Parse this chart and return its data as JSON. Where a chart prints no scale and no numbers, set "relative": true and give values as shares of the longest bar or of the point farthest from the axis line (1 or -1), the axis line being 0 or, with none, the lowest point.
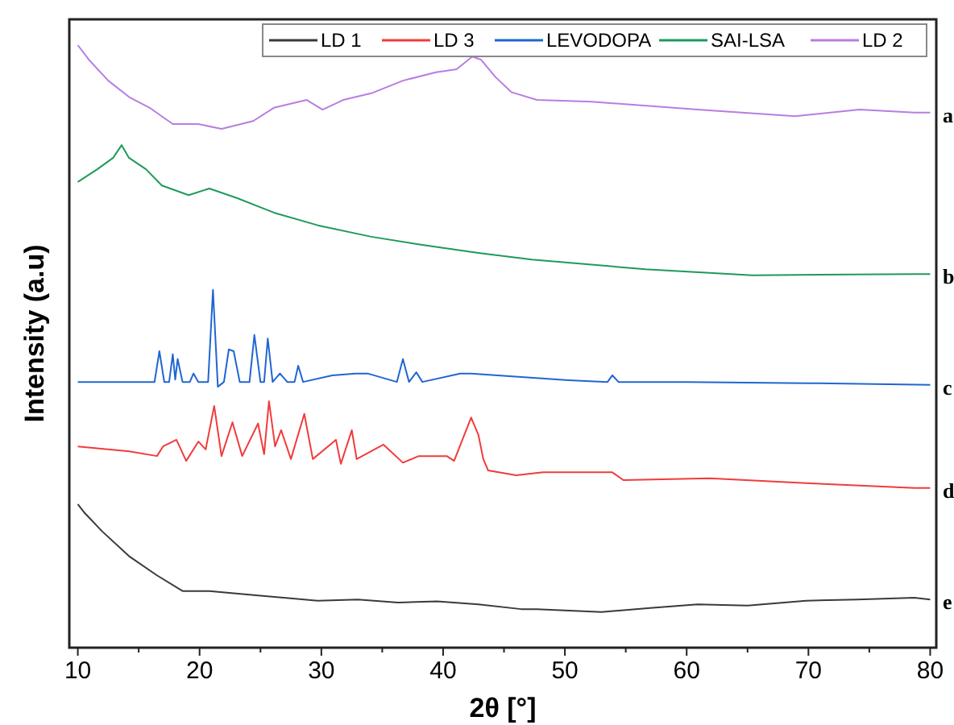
{
  "chart_data": {
    "type": "line",
    "relative": true,
    "xlabel": "2θ [°]",
    "ylabel": "Intensity (a.u)",
    "xlim": [
      9.3,
      80.5
    ],
    "xticks": [
      10,
      {
        "value": 15,
        "label": null
      },
      20,
      {
        "value": 25,
        "label": null
      },
      30,
      {
        "value": 35,
        "label": null
      },
      40,
      {
        "value": 45,
        "label": null
      },
      50,
      {
        "value": 55,
        "label": null
      },
      60,
      {
        "value": 65,
        "label": null
      },
      70,
      {
        "value": 75,
        "label": null
      },
      80
    ],
    "legend": "top right",
    "grid": false,
    "marker": "none",
    "line_style": "solid",
    "series": [
      {
        "name": "LD 1",
        "color": "#3a3a3a",
        "x": [
          10,
          10.5,
          12,
          14.2,
          16.5,
          18.6,
          20.8,
          23,
          25.2,
          27.5,
          29.7,
          33,
          36.3,
          39.5,
          42.9,
          46.4,
          47.7,
          53,
          57,
          60.9,
          65,
          69.8,
          74,
          78.7,
          80
        ],
        "values": [
          0.238,
          0.225,
          0.193,
          0.152,
          0.12,
          0.094,
          0.094,
          0.09,
          0.086,
          0.082,
          0.078,
          0.08,
          0.075,
          0.077,
          0.072,
          0.064,
          0.064,
          0.059,
          0.066,
          0.072,
          0.07,
          0.078,
          0.08,
          0.083,
          0.08
        ]
      },
      {
        "name": "LD 3",
        "color": "#f03c3c",
        "x": [
          10,
          14.2,
          16.5,
          17,
          18.1,
          18.9,
          19.9,
          20.5,
          21.2,
          21.8,
          22.7,
          23.5,
          24.8,
          25.3,
          25.7,
          26.2,
          26.7,
          27.5,
          28.6,
          29.3,
          31.2,
          31.6,
          32.5,
          32.9,
          35.1,
          36.7,
          38,
          40.3,
          40.9,
          42.3,
          42.9,
          43.3,
          43.7,
          46,
          48.2,
          53.9,
          54.8,
          61.9,
          69.8,
          78.7,
          80
        ],
        "values": [
          0.334,
          0.326,
          0.318,
          0.334,
          0.345,
          0.31,
          0.342,
          0.329,
          0.401,
          0.318,
          0.374,
          0.318,
          0.372,
          0.321,
          0.409,
          0.334,
          0.361,
          0.313,
          0.388,
          0.313,
          0.345,
          0.305,
          0.361,
          0.313,
          0.337,
          0.307,
          0.318,
          0.318,
          0.31,
          0.382,
          0.353,
          0.313,
          0.294,
          0.286,
          0.291,
          0.291,
          0.278,
          0.281,
          0.273,
          0.265,
          0.265
        ]
      },
      {
        "name": "LEVODOPA",
        "color": "#1f66d1",
        "x": [
          10,
          15,
          16.3,
          16.7,
          17.1,
          17.5,
          17.8,
          18,
          18.2,
          18.6,
          19.2,
          19.5,
          19.9,
          20.7,
          21.1,
          21.5,
          22,
          22.4,
          22.8,
          23.3,
          24.1,
          24.5,
          25,
          25.3,
          25.6,
          26,
          26.6,
          27.2,
          27.8,
          28.1,
          28.5,
          30.9,
          32.8,
          33.8,
          36.2,
          36.7,
          37.2,
          37.8,
          38.3,
          41.4,
          42.3,
          50.3,
          53.5,
          53.9,
          54.4,
          60,
          70,
          80
        ],
        "values": [
          0.441,
          0.441,
          0.441,
          0.492,
          0.441,
          0.441,
          0.487,
          0.445,
          0.479,
          0.441,
          0.441,
          0.455,
          0.441,
          0.441,
          0.594,
          0.433,
          0.441,
          0.495,
          0.492,
          0.441,
          0.441,
          0.519,
          0.441,
          0.441,
          0.513,
          0.441,
          0.455,
          0.441,
          0.441,
          0.468,
          0.441,
          0.452,
          0.455,
          0.455,
          0.441,
          0.479,
          0.441,
          0.457,
          0.441,
          0.455,
          0.455,
          0.444,
          0.441,
          0.452,
          0.441,
          0.441,
          0.439,
          0.436
        ]
      },
      {
        "name": "SAI-LSA",
        "color": "#1e9a5a",
        "x": [
          10,
          11.6,
          12.9,
          13.6,
          14.2,
          15.6,
          16.9,
          19.1,
          20.8,
          23.1,
          26.1,
          29.7,
          34.1,
          38.4,
          42.9,
          47.3,
          56.6,
          65.4,
          78.7,
          80
        ],
        "values": [
          0.773,
          0.794,
          0.813,
          0.834,
          0.813,
          0.794,
          0.767,
          0.751,
          0.762,
          0.746,
          0.722,
          0.701,
          0.682,
          0.668,
          0.655,
          0.644,
          0.628,
          0.618,
          0.62,
          0.62
        ]
      },
      {
        "name": "LD 2",
        "color": "#b77ee0",
        "x": [
          10,
          10.9,
          12.5,
          14.2,
          15.9,
          17.8,
          19.9,
          21.8,
          24.4,
          26.1,
          28.8,
          30.1,
          31.8,
          34.1,
          36.7,
          39.4,
          41.1,
          42.4,
          43.1,
          44.3,
          45.6,
          47.7,
          52.2,
          60.9,
          68.9,
          74.2,
          78.7,
          80
        ],
        "values": [
          1.0,
          0.976,
          0.941,
          0.914,
          0.896,
          0.869,
          0.869,
          0.861,
          0.874,
          0.896,
          0.909,
          0.893,
          0.909,
          0.92,
          0.941,
          0.955,
          0.96,
          0.981,
          0.976,
          0.947,
          0.922,
          0.909,
          0.906,
          0.893,
          0.882,
          0.893,
          0.888,
          0.888
        ]
      }
    ],
    "annotations": [
      "a",
      "b",
      "c",
      "d",
      "e"
    ]
  }
}
